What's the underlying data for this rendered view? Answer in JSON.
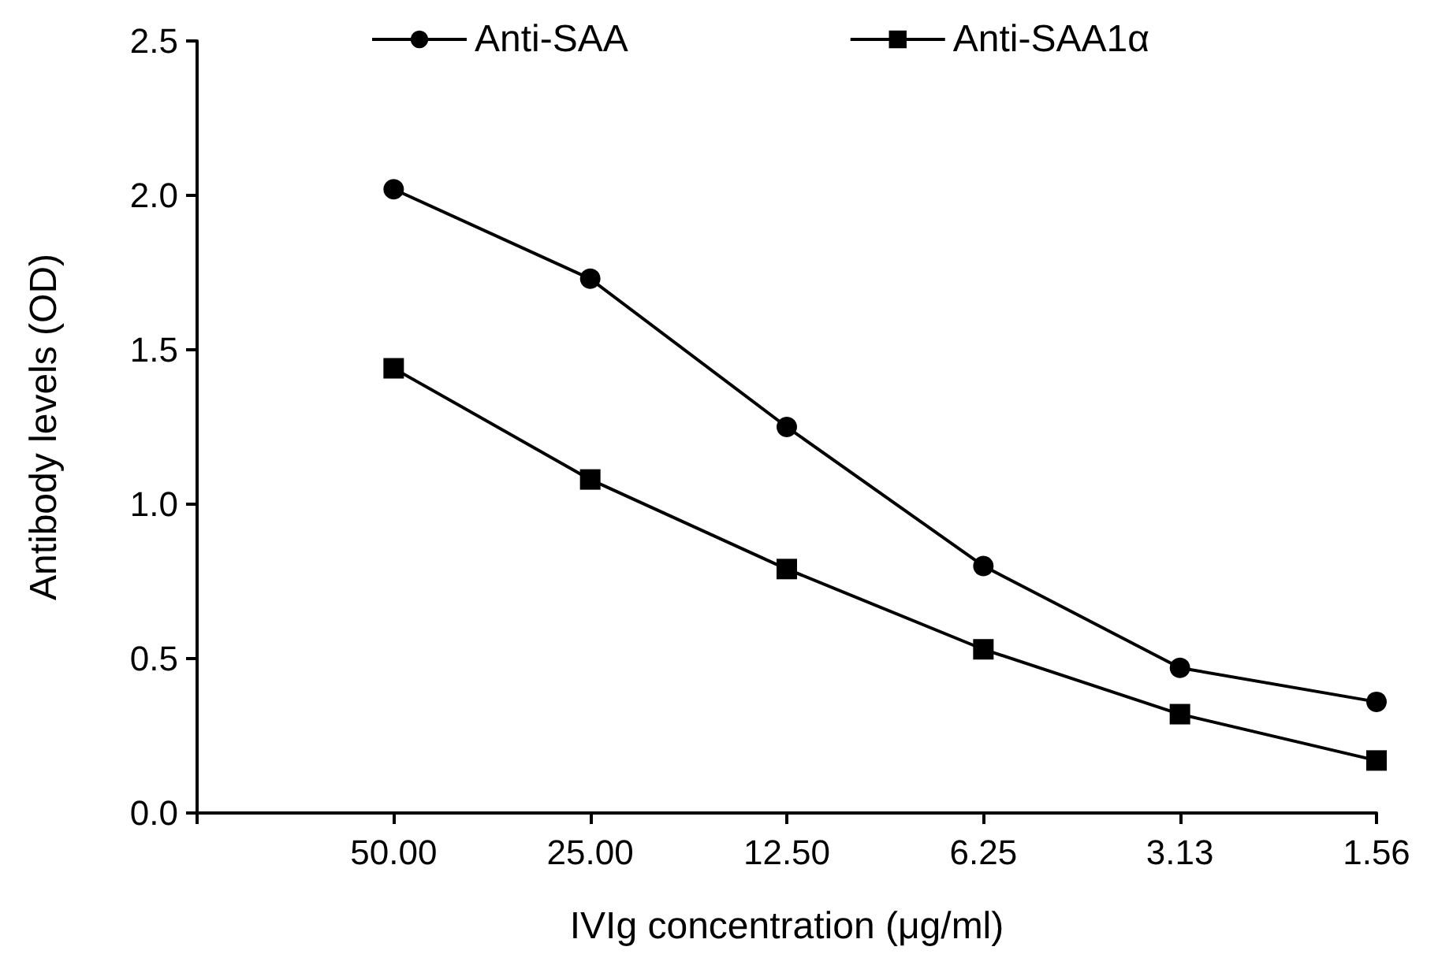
{
  "chart_data": {
    "type": "line",
    "xlabel": "IVIg concentration (μg/ml)",
    "ylabel": "Antibody levels (OD)",
    "categories": [
      null,
      "50.00",
      "25.00",
      "12.50",
      "6.25",
      "3.13",
      "1.56"
    ],
    "series": [
      {
        "name": "Anti-SAA",
        "color": "#000000",
        "marker": "circle",
        "values": [
          null,
          2.02,
          1.73,
          1.25,
          0.8,
          0.47,
          0.36
        ]
      },
      {
        "name": "Anti-SAA1α",
        "color": "#000000",
        "marker": "square",
        "values": [
          null,
          1.44,
          1.08,
          0.79,
          0.53,
          0.32,
          0.17
        ]
      }
    ],
    "ylim": [
      0,
      2.5
    ],
    "yticks": [
      {
        "value": 0,
        "label": "0.0"
      },
      {
        "value": 0.5,
        "label": "0.5"
      },
      {
        "value": 1,
        "label": "1.0"
      },
      {
        "value": 1.5,
        "label": "1.5"
      },
      {
        "value": 2,
        "label": "2.0"
      },
      {
        "value": 2.5,
        "label": "2.5"
      }
    ],
    "grid": false,
    "legend": "top",
    "line_style": "solid"
  }
}
